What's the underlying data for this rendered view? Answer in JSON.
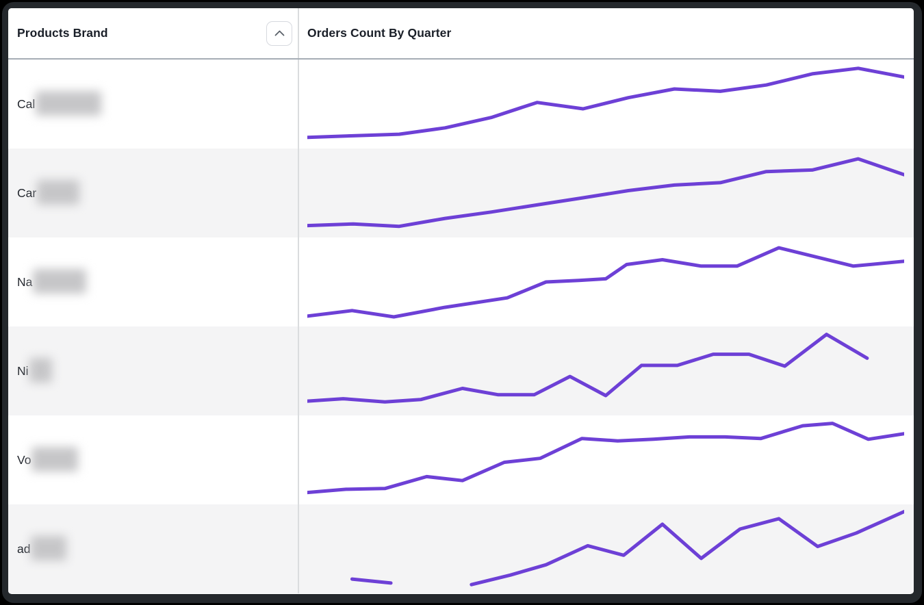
{
  "header": {
    "col1": "Products Brand",
    "col2": "Orders Count By Quarter",
    "sort_icon": "chevron-up-icon"
  },
  "rows": [
    {
      "brand_prefix": "Cal",
      "redacted": true,
      "blur_width": 96
    },
    {
      "brand_prefix": "Car",
      "redacted": true,
      "blur_width": 62
    },
    {
      "brand_prefix": "Na",
      "redacted": true,
      "blur_width": 78
    },
    {
      "brand_prefix": "Ni",
      "redacted": true,
      "blur_width": 33
    },
    {
      "brand_prefix": "Vo",
      "redacted": true,
      "blur_width": 68
    },
    {
      "brand_prefix": "ad",
      "redacted": true,
      "blur_width": 52
    }
  ],
  "chart_data": {
    "type": "line",
    "title": "Orders Count By Quarter",
    "xlabel": "quarter (tick labels not shown)",
    "ylabel": "orders count (numeric axis not shown)",
    "value_scale": "normalized 0-100, estimated from sparkline pixel positions",
    "legend": "none",
    "grid": false,
    "series": [
      {
        "name": "Cal… (redacted)",
        "segments": [
          [
            [
              0,
              8
            ],
            [
              7.7,
              10
            ],
            [
              15.4,
              12
            ],
            [
              23.1,
              20
            ],
            [
              30.8,
              33
            ],
            [
              38.5,
              52
            ],
            [
              46.2,
              44
            ],
            [
              53.8,
              58
            ],
            [
              61.5,
              69
            ],
            [
              69.2,
              66
            ],
            [
              76.9,
              74
            ],
            [
              84.6,
              88
            ],
            [
              92.3,
              95
            ],
            [
              100,
              84
            ]
          ]
        ]
      },
      {
        "name": "Car… (redacted)",
        "segments": [
          [
            [
              0,
              9
            ],
            [
              7.7,
              11
            ],
            [
              15.4,
              8
            ],
            [
              23.1,
              18
            ],
            [
              30.8,
              26
            ],
            [
              38.5,
              35
            ],
            [
              46.2,
              44
            ],
            [
              53.8,
              53
            ],
            [
              61.5,
              60
            ],
            [
              69.2,
              63
            ],
            [
              76.9,
              77
            ],
            [
              84.6,
              79
            ],
            [
              92.3,
              93
            ],
            [
              100,
              73
            ]
          ]
        ]
      },
      {
        "name": "Na… (redacted)",
        "segments": [
          [
            [
              0,
              7
            ],
            [
              7.5,
              14
            ],
            [
              14.5,
              6
            ],
            [
              23,
              18
            ],
            [
              33.5,
              30
            ],
            [
              40,
              50
            ],
            [
              45.5,
              52
            ],
            [
              50,
              54
            ],
            [
              53.5,
              72
            ],
            [
              59.5,
              78
            ],
            [
              66,
              70
            ],
            [
              72,
              70
            ],
            [
              79,
              93
            ],
            [
              91.5,
              70
            ],
            [
              100,
              76
            ]
          ]
        ]
      },
      {
        "name": "Ni… (redacted)",
        "segments": [
          [
            [
              0,
              12
            ],
            [
              6,
              15
            ],
            [
              13,
              11
            ],
            [
              19,
              14
            ],
            [
              26,
              28
            ],
            [
              32,
              20
            ],
            [
              38,
              20
            ],
            [
              44,
              43
            ],
            [
              50,
              19
            ],
            [
              56,
              57
            ],
            [
              62,
              57
            ],
            [
              68,
              71
            ],
            [
              74,
              71
            ],
            [
              80,
              56
            ],
            [
              87,
              96
            ],
            [
              93.8,
              66
            ]
          ]
        ]
      },
      {
        "name": "Vo… (redacted)",
        "segments": [
          [
            [
              0,
              9
            ],
            [
              6.5,
              13
            ],
            [
              13,
              14
            ],
            [
              20,
              29
            ],
            [
              26,
              24
            ],
            [
              33,
              47
            ],
            [
              39,
              52
            ],
            [
              46,
              77
            ],
            [
              52,
              74
            ],
            [
              58,
              76
            ],
            [
              64,
              79
            ],
            [
              70,
              79
            ],
            [
              76,
              77
            ],
            [
              83,
              93
            ],
            [
              88,
              96
            ],
            [
              94,
              76
            ],
            [
              100,
              83
            ]
          ]
        ]
      },
      {
        "name": "ad… (redacted)",
        "segments": [
          [
            [
              7.5,
              12
            ],
            [
              14,
              7
            ]
          ],
          [
            [
              27.5,
              5
            ],
            [
              34,
              17
            ],
            [
              40,
              30
            ],
            [
              47,
              54
            ],
            [
              53,
              42
            ],
            [
              59.5,
              81
            ],
            [
              66,
              38
            ],
            [
              72.5,
              75
            ],
            [
              79,
              88
            ],
            [
              85.5,
              53
            ],
            [
              92,
              70
            ],
            [
              100,
              97
            ]
          ]
        ]
      }
    ]
  },
  "colors": {
    "line": "#6d40d6",
    "row_alt_bg": "#f4f4f5",
    "divider": "#dadcde",
    "header_underline": "#a6adb5",
    "header_text": "#1a1f28",
    "frame": "#24282c"
  }
}
